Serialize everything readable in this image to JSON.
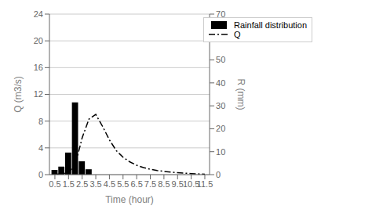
{
  "chart_data": {
    "type": "bar",
    "xlabel": "Time (hour)",
    "ylabel": "Q (m3/s)",
    "y2label": "R (mm)",
    "xlim": [
      0.1,
      11.85
    ],
    "xticks": [
      0.5,
      1.5,
      2.5,
      3.5,
      4.5,
      5.5,
      6.5,
      7.5,
      8.5,
      9.5,
      10.5,
      11.5
    ],
    "ylim": [
      0,
      24
    ],
    "yticks": [
      0,
      4,
      8,
      12,
      16,
      20,
      24
    ],
    "y2lim": [
      0,
      70
    ],
    "y2ticks": [
      0,
      10,
      20,
      30,
      40,
      50,
      60,
      70
    ],
    "grid": true,
    "legend": "upper right",
    "series": [
      {
        "name": "Rainfall distribution",
        "type": "bar",
        "color": "#000000",
        "x": [
          0.5,
          1.0,
          1.5,
          2.0,
          2.5,
          3.0
        ],
        "values": [
          0.7,
          1.2,
          3.3,
          10.8,
          2.0,
          0.8
        ]
      },
      {
        "name": "Q",
        "type": "line",
        "color": "#000000",
        "line_style": "dashdot",
        "x": [
          0.5,
          1.0,
          1.5,
          2.0,
          2.5,
          3.0,
          3.5,
          4.0,
          4.5,
          5.0,
          5.5,
          6.0,
          6.5,
          7.0,
          7.5,
          8.0,
          8.5,
          9.0,
          9.5,
          10.0,
          10.5,
          11.0,
          11.5
        ],
        "values": [
          0.05,
          0.1,
          0.3,
          1.5,
          5.5,
          8.3,
          9.0,
          7.2,
          5.2,
          3.6,
          2.6,
          1.9,
          1.4,
          1.05,
          0.8,
          0.62,
          0.48,
          0.37,
          0.29,
          0.22,
          0.16,
          0.11,
          0.06
        ]
      }
    ]
  }
}
